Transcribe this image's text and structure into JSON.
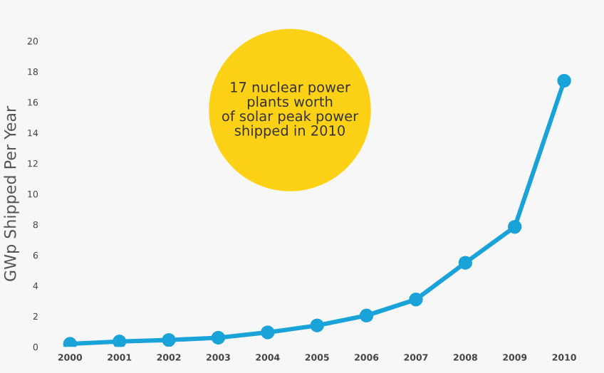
{
  "chart_data": {
    "type": "line",
    "ylabel": "GWp Shipped Per Year",
    "categories": [
      "2000",
      "2001",
      "2002",
      "2003",
      "2004",
      "2005",
      "2006",
      "2007",
      "2008",
      "2009",
      "2010"
    ],
    "series": [
      {
        "color": "#1aa3d9",
        "values": [
          0.2,
          0.35,
          0.45,
          0.6,
          0.95,
          1.4,
          2.05,
          3.1,
          5.5,
          7.85,
          17.4
        ]
      }
    ],
    "ylim": [
      0,
      20
    ],
    "yticks": [
      0,
      2,
      4,
      6,
      8,
      10,
      12,
      14,
      16,
      18,
      20
    ],
    "marker": "circle",
    "line_style": "solid",
    "grid": false,
    "annotations": [
      "17 nuclear power\nplants worth\nof solar peak power\nshipped in 2010"
    ]
  }
}
